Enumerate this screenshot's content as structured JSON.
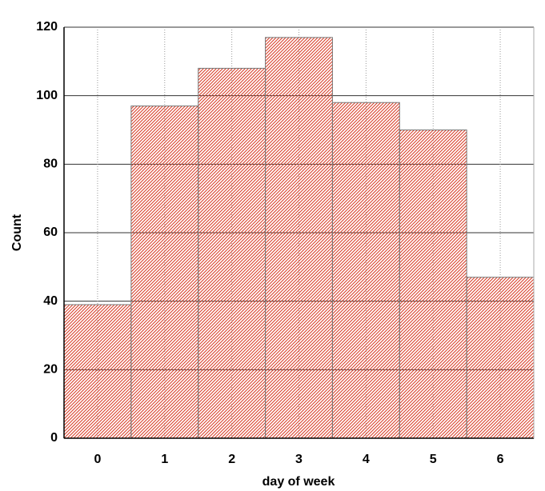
{
  "chart_data": {
    "type": "bar",
    "x_label": "day of week",
    "y_label": "Count",
    "x": [
      0,
      1,
      2,
      3,
      4,
      5,
      6
    ],
    "values": [
      39,
      97,
      108,
      117,
      98,
      90,
      47
    ],
    "color": "#d9402a",
    "xlim": [
      -0.5,
      6.5
    ],
    "ylim": [
      0,
      120
    ],
    "xticks": [
      0,
      1,
      2,
      3,
      4,
      5,
      6
    ],
    "yticks": [
      0,
      20,
      40,
      60,
      80,
      100,
      120
    ],
    "grid": true
  }
}
